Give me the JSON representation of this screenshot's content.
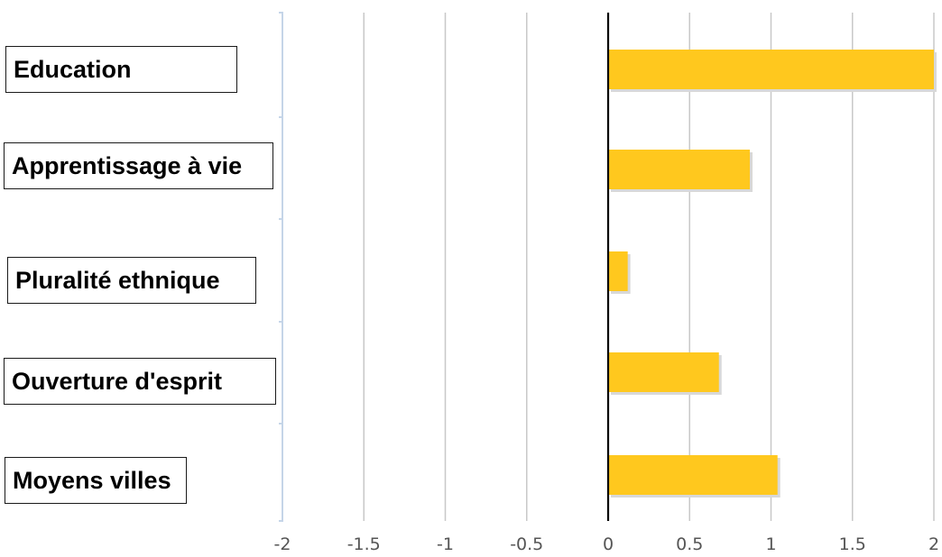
{
  "chart_data": {
    "type": "bar",
    "orientation": "horizontal",
    "categories": [
      "Education",
      "Apprentissage à vie",
      "Pluralité ethnique",
      "Ouverture d'esprit",
      "Moyens villes"
    ],
    "values": [
      2.0,
      0.87,
      0.12,
      0.68,
      1.04
    ],
    "xlim": [
      -2,
      2
    ],
    "xticks": [
      -2,
      -1.5,
      -1,
      -0.5,
      0,
      0.5,
      1,
      1.5,
      2
    ],
    "xtick_labels": [
      "-2",
      "-1.5",
      "-1",
      "-0.5",
      "0",
      "0.5",
      "1",
      "1.5",
      "2"
    ],
    "title": "",
    "xlabel": "",
    "ylabel": "",
    "grid": "vertical",
    "legend": "none",
    "colors": {
      "bar": "#ffc81e",
      "bar_shadow": "#d8d8d8",
      "grid": "#c8c8c8",
      "zero_line": "#000000",
      "left_axis": "#c5d5e8",
      "tick_text": "#555555"
    }
  }
}
